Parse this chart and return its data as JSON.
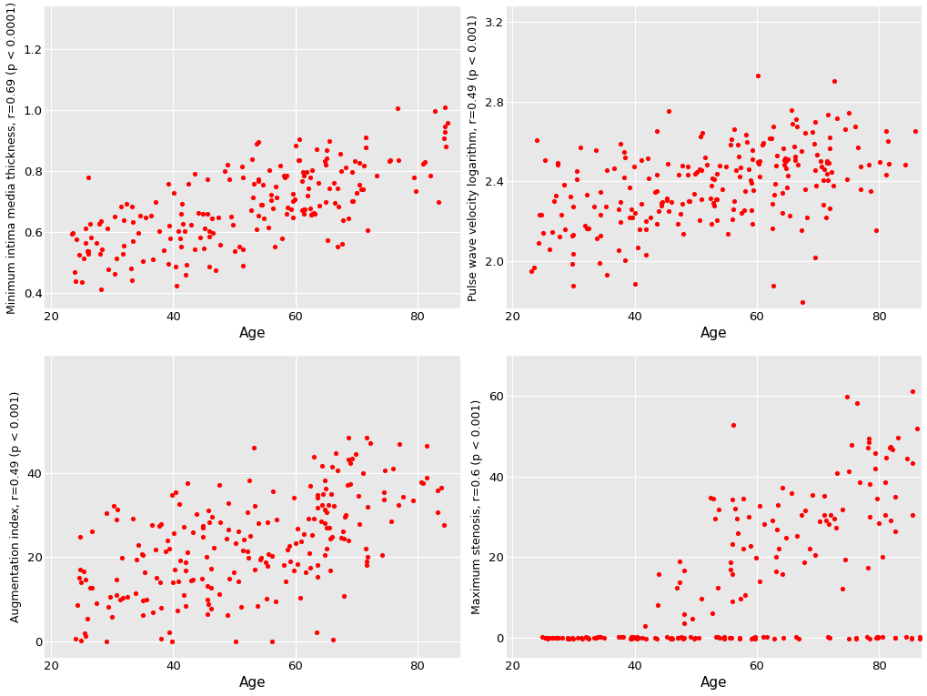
{
  "fig_background": "#FFFFFF",
  "panel_background": "#E8E8E8",
  "grid_color": "#FFFFFF",
  "dot_color": "#FF0000",
  "dot_size": 14,
  "plots": [
    {
      "ylabel": "Minimum intima media thickness, r=0.69 (p < 0.0001)",
      "xlabel": "Age",
      "xlim": [
        19,
        87
      ],
      "ylim": [
        0.35,
        1.34
      ],
      "yticks": [
        0.4,
        0.6,
        0.8,
        1.0,
        1.2
      ],
      "xticks": [
        20,
        40,
        60,
        80
      ],
      "n": 200,
      "y_mean": 0.685,
      "y_std": 0.125,
      "age_min": 23,
      "age_max": 86,
      "r": 0.69,
      "y_clip_low": 0.36,
      "y_clip_high": 1.32,
      "seed": 42,
      "special": "none"
    },
    {
      "ylabel": "Pulse wave velocity logarithm, r=0.49 (p < 0.001)",
      "xlabel": "Age",
      "xlim": [
        19,
        87
      ],
      "ylim": [
        1.76,
        3.28
      ],
      "yticks": [
        2.0,
        2.4,
        2.8,
        3.2
      ],
      "xticks": [
        20,
        40,
        60,
        80
      ],
      "n": 230,
      "y_mean": 2.38,
      "y_std": 0.2,
      "age_min": 23,
      "age_max": 86,
      "r": 0.49,
      "y_clip_low": 1.78,
      "y_clip_high": 3.22,
      "seed": 43,
      "special": "none"
    },
    {
      "ylabel": "Augmentation index, r=0.49 (p < 0.001)",
      "xlabel": "Age",
      "xlim": [
        19,
        87
      ],
      "ylim": [
        -4,
        68
      ],
      "yticks": [
        0,
        20,
        40
      ],
      "xticks": [
        20,
        40,
        60,
        80
      ],
      "n": 220,
      "y_mean": 23,
      "y_std": 11,
      "age_min": 23,
      "age_max": 86,
      "r": 0.49,
      "y_clip_low": 0,
      "y_clip_high": 57,
      "seed": 44,
      "special": "none"
    },
    {
      "ylabel": "Maximum stenosis, r=0.6 (p < 0.001)",
      "xlabel": "Age",
      "xlim": [
        19,
        87
      ],
      "ylim": [
        -5,
        70
      ],
      "yticks": [
        0,
        20,
        40,
        60
      ],
      "xticks": [
        20,
        40,
        60,
        80
      ],
      "n_zero": 100,
      "n_nonzero": 100,
      "y_mean": 28,
      "y_std": 13,
      "age_min": 23,
      "age_max": 87,
      "r": 0.6,
      "y_clip_low": 0,
      "y_clip_high": 65,
      "seed": 45,
      "special": "stenosis"
    }
  ]
}
